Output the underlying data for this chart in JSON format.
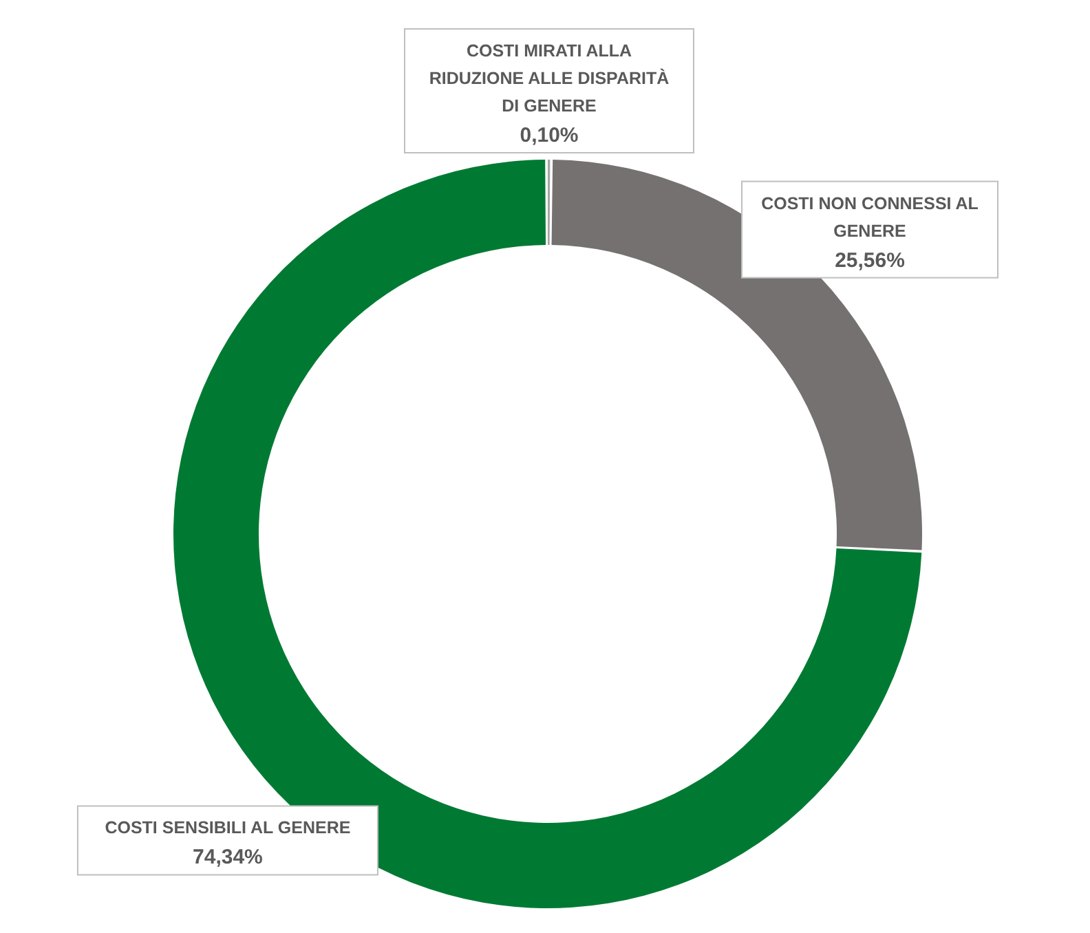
{
  "chart_data": {
    "type": "donut",
    "categories": [
      "COSTI MIRATI ALLA RIDUZIONE ALLE DISPARITÀ DI GENERE",
      "COSTI NON CONNESSI AL GENERE",
      "COSTI SENSIBILI AL GENERE"
    ],
    "values": [
      0.1,
      25.56,
      74.34
    ],
    "colors": [
      "#a6a6a6",
      "#767171",
      "#007a33"
    ],
    "value_labels": [
      "0,10%",
      "25,56%",
      "74,34%"
    ]
  }
}
